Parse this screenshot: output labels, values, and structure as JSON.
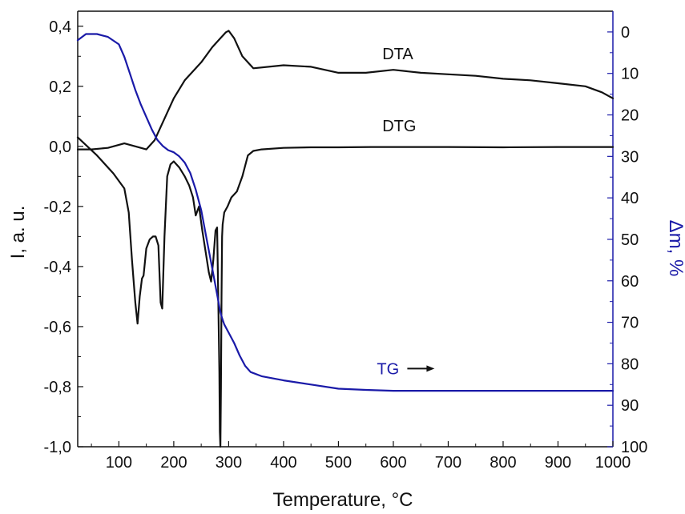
{
  "chart_data": {
    "type": "line",
    "xlabel": "Temperature, °C",
    "ylabel_left": "I, a. u.",
    "ylabel_right": "Δm, %",
    "xlim": [
      25,
      1000
    ],
    "ylim_left": [
      -1.0,
      0.45
    ],
    "ylim_right": [
      100,
      -5
    ],
    "x_ticks": [
      100,
      200,
      300,
      400,
      500,
      600,
      700,
      800,
      900,
      1000
    ],
    "x_tick_labels": [
      "100",
      "200",
      "300",
      "400",
      "500",
      "600",
      "700",
      "800",
      "900",
      "1000"
    ],
    "y_left_ticks": [
      0.4,
      0.2,
      0.0,
      -0.2,
      -0.4,
      -0.6,
      -0.8,
      -1.0
    ],
    "y_left_tick_labels": [
      "0,4",
      "0,2",
      "0,0",
      "-0,2",
      "-0,4",
      "-0,6",
      "-0,8",
      "-1,0"
    ],
    "y_right_ticks": [
      0,
      10,
      20,
      30,
      40,
      50,
      60,
      70,
      80,
      90,
      100
    ],
    "y_right_tick_labels": [
      "0",
      "10",
      "20",
      "30",
      "40",
      "50",
      "60",
      "70",
      "80",
      "90",
      "100"
    ],
    "grid": false,
    "colors": {
      "dta": "#111111",
      "dtg": "#111111",
      "tg": "#1a1aa8"
    },
    "annotations": [
      {
        "text": "DTA",
        "x": 580,
        "y": 0.29,
        "axis": "left"
      },
      {
        "text": "DTG",
        "x": 580,
        "y": 0.05,
        "axis": "left"
      },
      {
        "text": "TG",
        "x": 570,
        "y": 82.5,
        "axis": "right",
        "arrow": "right"
      }
    ],
    "series": [
      {
        "name": "DTA",
        "axis": "left",
        "x": [
          25,
          50,
          80,
          110,
          130,
          150,
          165,
          180,
          200,
          220,
          250,
          270,
          285,
          295,
          300,
          310,
          325,
          345,
          400,
          450,
          500,
          550,
          600,
          650,
          700,
          750,
          800,
          850,
          900,
          950,
          980,
          1000
        ],
        "y": [
          -0.01,
          -0.01,
          -0.005,
          0.01,
          0.0,
          -0.01,
          0.02,
          0.08,
          0.16,
          0.22,
          0.28,
          0.33,
          0.36,
          0.38,
          0.385,
          0.36,
          0.3,
          0.26,
          0.27,
          0.265,
          0.245,
          0.245,
          0.255,
          0.245,
          0.24,
          0.235,
          0.225,
          0.22,
          0.21,
          0.2,
          0.18,
          0.16
        ]
      },
      {
        "name": "DTG",
        "axis": "left",
        "x": [
          25,
          60,
          90,
          110,
          118,
          124,
          130,
          134,
          138,
          142,
          145,
          150,
          156,
          162,
          167,
          172,
          176,
          179,
          183,
          188,
          194,
          200,
          210,
          220,
          228,
          235,
          240,
          246,
          252,
          258,
          264,
          268,
          272,
          276,
          279,
          281,
          283,
          284,
          285,
          286,
          287,
          288,
          289,
          292,
          298,
          305,
          315,
          325,
          335,
          345,
          360,
          400,
          450,
          500,
          560,
          600,
          700,
          800,
          900,
          1000
        ],
        "y": [
          0.03,
          -0.03,
          -0.09,
          -0.14,
          -0.22,
          -0.38,
          -0.52,
          -0.59,
          -0.5,
          -0.44,
          -0.43,
          -0.34,
          -0.31,
          -0.3,
          -0.3,
          -0.33,
          -0.52,
          -0.54,
          -0.3,
          -0.1,
          -0.06,
          -0.05,
          -0.07,
          -0.1,
          -0.13,
          -0.17,
          -0.23,
          -0.2,
          -0.28,
          -0.35,
          -0.42,
          -0.45,
          -0.38,
          -0.28,
          -0.27,
          -0.5,
          -0.75,
          -0.95,
          -1.0,
          -0.8,
          -0.5,
          -0.3,
          -0.26,
          -0.22,
          -0.2,
          -0.17,
          -0.15,
          -0.1,
          -0.03,
          -0.015,
          -0.01,
          -0.005,
          -0.003,
          -0.003,
          -0.002,
          -0.002,
          -0.002,
          -0.003,
          -0.002,
          -0.002
        ]
      },
      {
        "name": "TG",
        "axis": "right",
        "x": [
          25,
          40,
          60,
          80,
          100,
          110,
          120,
          130,
          140,
          150,
          160,
          170,
          180,
          190,
          200,
          210,
          220,
          230,
          240,
          250,
          260,
          270,
          280,
          284,
          288,
          292,
          300,
          310,
          320,
          330,
          340,
          360,
          400,
          450,
          500,
          550,
          600,
          700,
          800,
          900,
          1000
        ],
        "y": [
          2,
          0.5,
          0.5,
          1.2,
          3,
          6,
          10,
          14,
          17.5,
          20.5,
          23.5,
          26,
          27.5,
          28.5,
          29,
          30,
          31.5,
          34,
          38,
          43,
          50,
          57,
          64,
          67,
          69,
          70.5,
          72.5,
          75,
          78,
          80.5,
          82,
          83,
          84,
          85,
          86,
          86.3,
          86.5,
          86.5,
          86.5,
          86.5,
          86.5
        ]
      }
    ]
  }
}
